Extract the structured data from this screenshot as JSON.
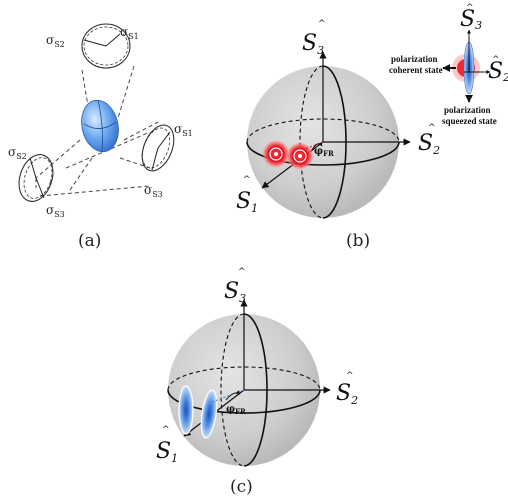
{
  "panels": {
    "a": {
      "caption": "(a)",
      "labels": {
        "top_s2": "σ",
        "top_s2_sub": "S2",
        "top_s1": "σ",
        "top_s1_sub": "S1",
        "right_s1": "σ",
        "right_s1_sub": "S1",
        "right_s3": "σ",
        "right_s3_sub": "S3",
        "left_s2": "σ",
        "left_s2_sub": "S2",
        "left_s3": "σ",
        "left_s3_sub": "S3"
      }
    },
    "b": {
      "caption": "(b)",
      "axis_s3": "S",
      "axis_s3_sub": "3",
      "axis_s2": "S",
      "axis_s2_sub": "2",
      "axis_s1": "S",
      "axis_s1_sub": "1",
      "angle": "φ",
      "angle_sub": "FR",
      "hat": "^",
      "inset": {
        "axis_s3": "S",
        "axis_s3_sub": "3",
        "axis_s2": "S",
        "axis_s2_sub": "2",
        "coherent_line1": "polarization",
        "coherent_line2": "coherent state",
        "squeezed_line1": "polarization",
        "squeezed_line2": "squeezed state"
      }
    },
    "c": {
      "caption": "(c)",
      "axis_s3": "S",
      "axis_s3_sub": "3",
      "axis_s2": "S",
      "axis_s2_sub": "2",
      "axis_s1": "S",
      "axis_s1_sub": "1",
      "angle": "φ",
      "angle_sub": "FR",
      "hat": "^"
    }
  },
  "colors": {
    "sphere": "#c8c8c8",
    "coherent_red": "#e8101e",
    "squeezed_blue": "#3a7fd8",
    "ellipsoid_blue": "#6aa6ee"
  }
}
